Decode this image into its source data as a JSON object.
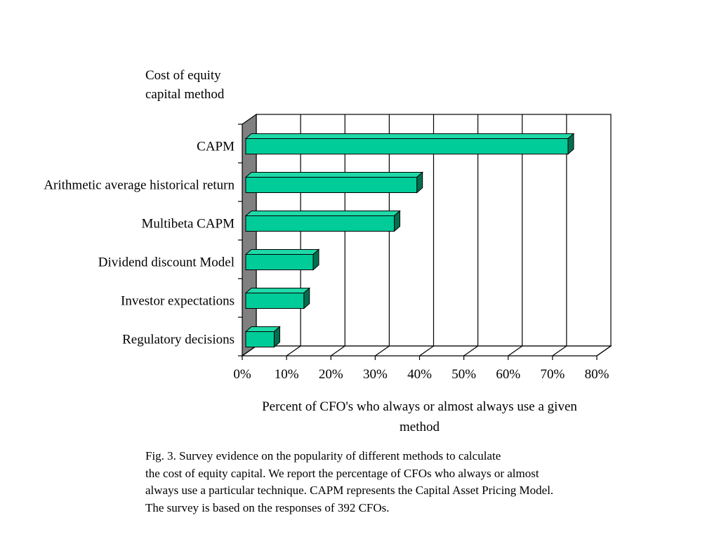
{
  "chart_data": {
    "type": "bar",
    "orientation": "horizontal",
    "ylabel_lines": [
      "Cost of equity",
      "capital method"
    ],
    "xlabel_lines": [
      "Percent of CFO's who always or almost always use a given",
      "method"
    ],
    "categories": [
      "CAPM",
      "Arithmetic average historical return",
      "Multibeta CAPM",
      "Dividend discount Model",
      "Investor expectations",
      "Regulatory decisions"
    ],
    "values": [
      73.5,
      39.4,
      34.3,
      16.0,
      13.9,
      7.2
    ],
    "value_unit": "%",
    "xlim": [
      0,
      80
    ],
    "xticks": [
      "0%",
      "10%",
      "20%",
      "30%",
      "40%",
      "50%",
      "60%",
      "70%",
      "80%"
    ],
    "grid": "vertical",
    "style": "3d",
    "colors": {
      "bar_front": "#00CC99",
      "bar_top": "#1FD9A8",
      "bar_side": "#00704F",
      "wall": "#808080"
    }
  },
  "caption_lines": [
    "Fig. 3.  Survey evidence on the popularity of different methods to calculate",
    "the cost of equity capital. We report the percentage of CFOs who always or almost",
    "always use a particular technique. CAPM represents the Capital Asset Pricing Model.",
    "The survey is based on the responses of 392 CFOs."
  ]
}
